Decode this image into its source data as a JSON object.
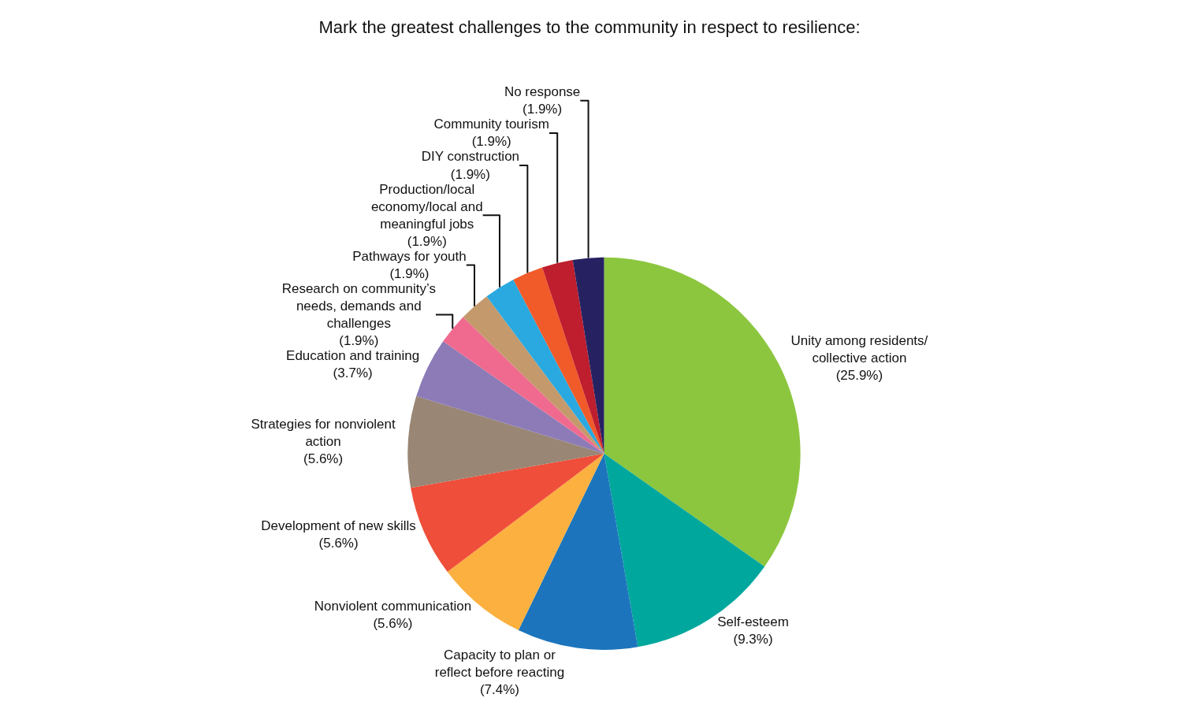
{
  "chart_data": {
    "type": "pie",
    "title": "Mark the greatest challenges to the community in respect to resilience:",
    "categories": [
      "Unity among residents/ collective action",
      "Self-esteem",
      "Capacity to plan or reflect before reacting",
      "Nonviolent communication",
      "Development of new skills",
      "Strategies for nonviolent action",
      "Education and training",
      "Research on community’s needs, demands and challenges",
      "Pathways for youth",
      "Production/local economy/local and meaningful jobs",
      "DIY construction",
      "Community tourism",
      "No response"
    ],
    "values": [
      25.9,
      9.3,
      7.4,
      5.6,
      5.6,
      5.6,
      3.7,
      1.9,
      1.9,
      1.9,
      1.9,
      1.9,
      1.9
    ],
    "value_labels": [
      "(25.9%)",
      "(9.3%)",
      "(7.4%)",
      "(5.6%)",
      "(5.6%)",
      "(5.6%)",
      "(3.7%)",
      "(1.9%)",
      "(1.9%)",
      "(1.9%)",
      "(1.9%)",
      "(1.9%)",
      "(1.9%)"
    ],
    "colors": [
      "#8cc63f",
      "#00a79d",
      "#1c75bc",
      "#fbb040",
      "#ef4e3a",
      "#998675",
      "#8c7bb7",
      "#f06a8f",
      "#c49a6c",
      "#29a9e0",
      "#f15a29",
      "#be1e2d",
      "#262262"
    ],
    "legend": false
  }
}
